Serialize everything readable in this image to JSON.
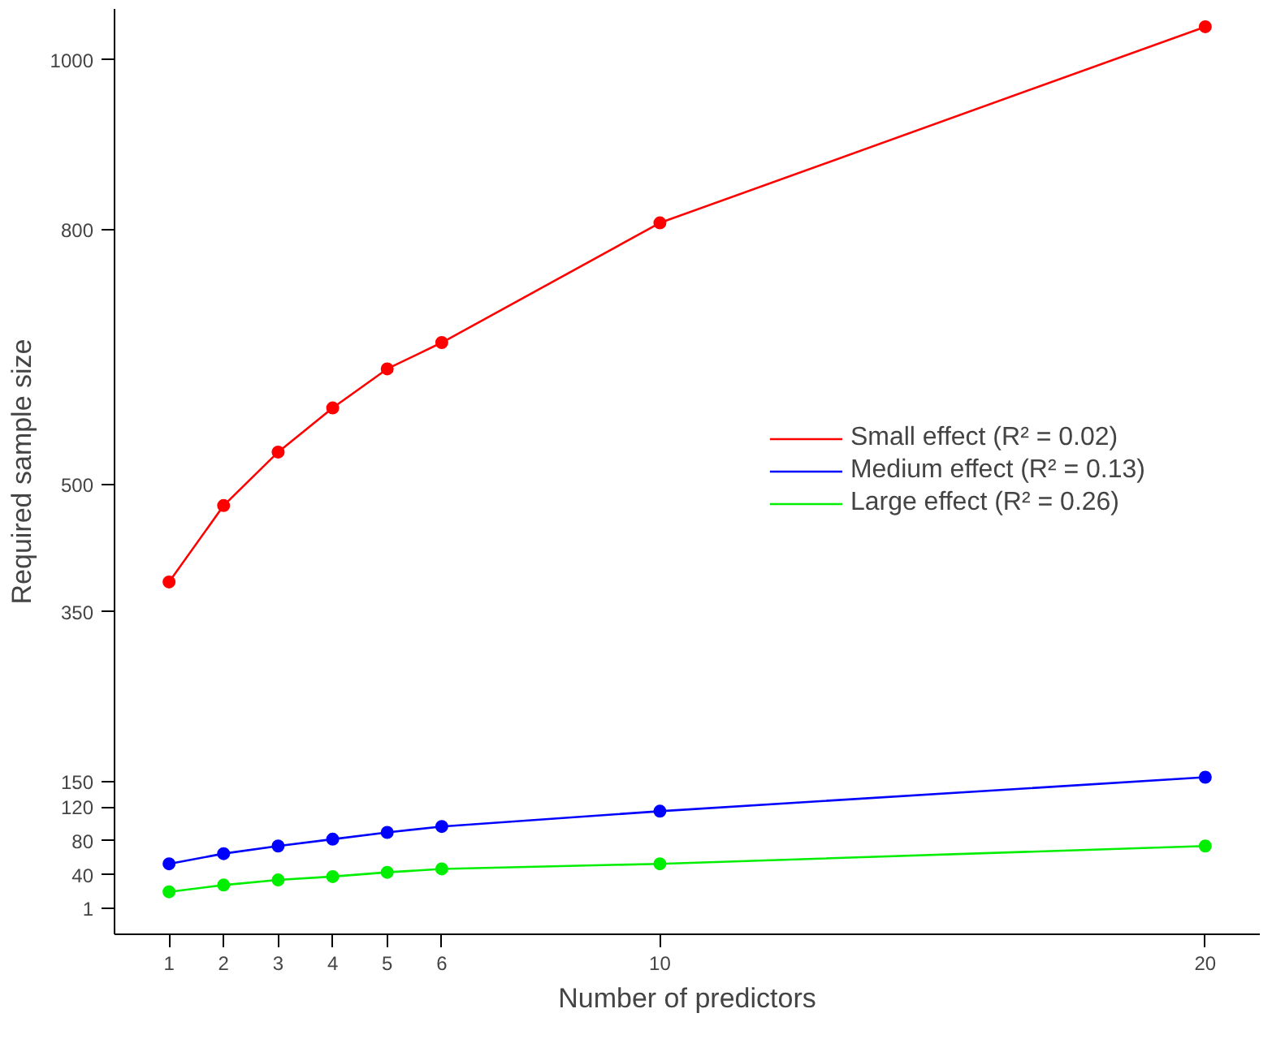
{
  "chart_data": {
    "type": "line",
    "xlabel": "Number of predictors",
    "ylabel": "Required sample size",
    "x": [
      1,
      2,
      3,
      4,
      5,
      6,
      10,
      20
    ],
    "series": [
      {
        "name": "Small effect (R² = 0.02)",
        "color": "#ff0000",
        "values": [
          385,
          475,
          538,
          590,
          636,
          667,
          808,
          1039
        ]
      },
      {
        "name": "Medium effect (R² = 0.13)",
        "color": "#0000ff",
        "values": [
          53,
          65,
          74,
          82,
          90,
          97,
          115,
          155
        ]
      },
      {
        "name": "Large effect (R² = 0.26)",
        "color": "#00ee00",
        "values": [
          20,
          28,
          34,
          38,
          43,
          47,
          53,
          74
        ]
      }
    ],
    "xlim": [
      0,
      21
    ],
    "ylim": [
      -30,
      1060
    ],
    "xticks": [
      1,
      2,
      3,
      4,
      5,
      6,
      10,
      20
    ],
    "yticks": [
      1,
      40,
      80,
      120,
      150,
      350,
      500,
      800,
      1000
    ],
    "marker": "circle",
    "line_style": "solid",
    "grid": false,
    "legend": "right"
  }
}
